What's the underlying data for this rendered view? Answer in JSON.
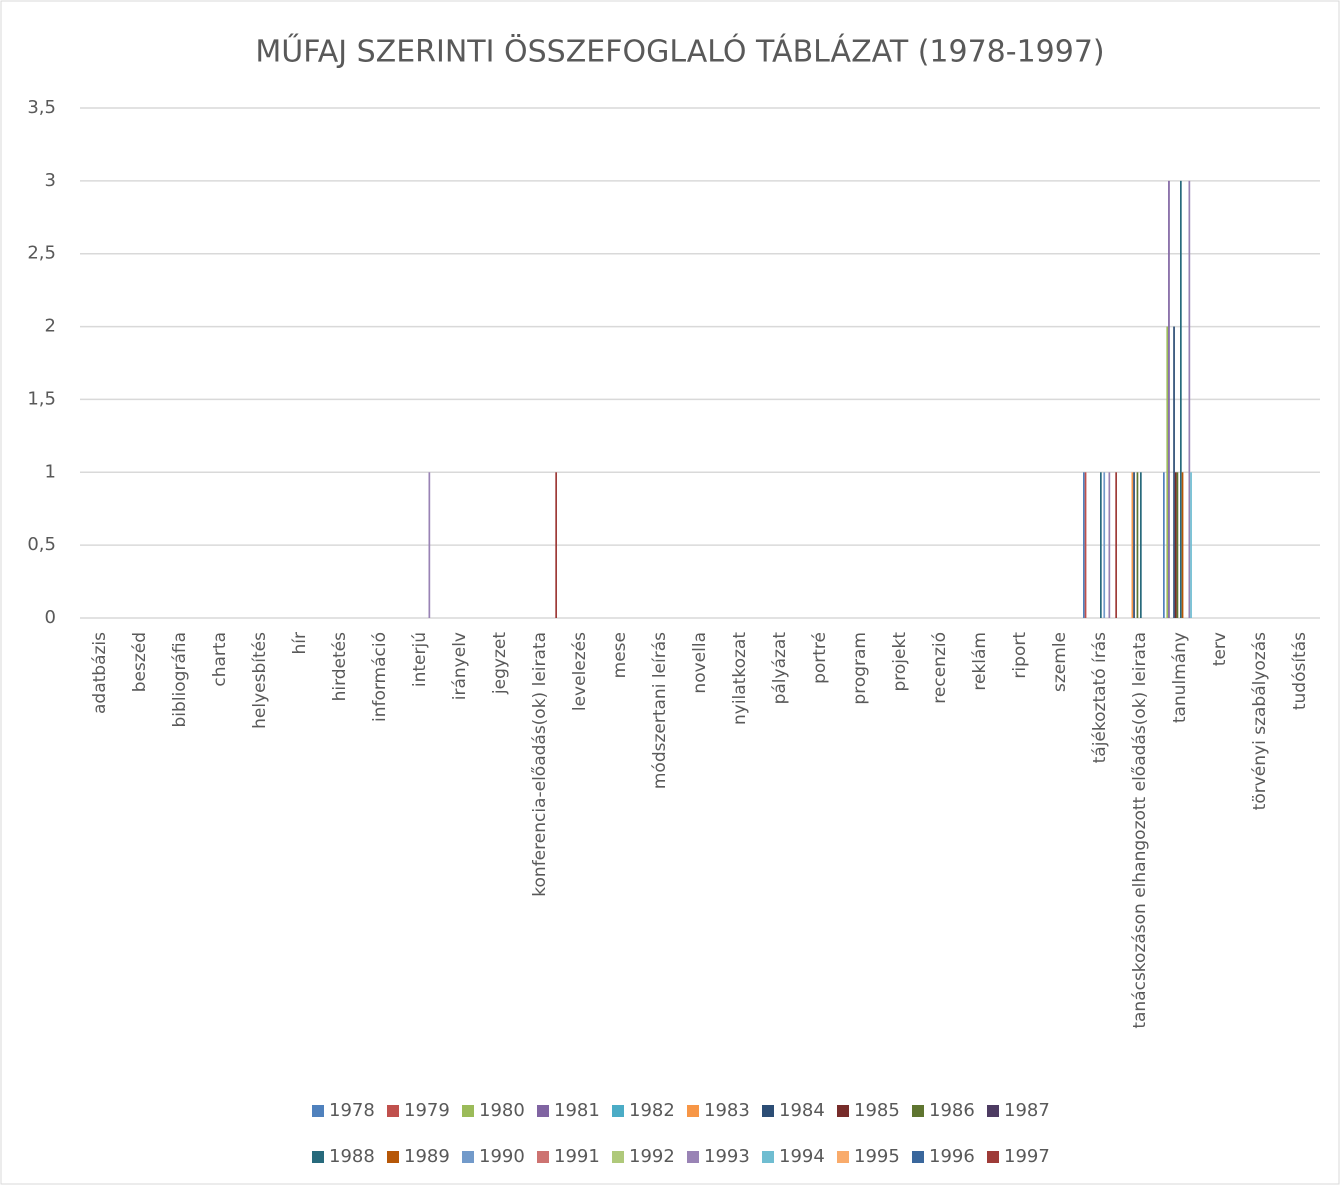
{
  "chart_data": {
    "type": "bar",
    "title": "MŰFAJ SZERINTI ÖSSZEFOGLALÓ TÁBLÁZAT (1978-1997)",
    "categories": [
      "adatbázis",
      "beszéd",
      "bibliográfia",
      "charta",
      "helyesbítés",
      "hír",
      "hirdetés",
      "információ",
      "interjú",
      "irányelv",
      "jegyzet",
      "konferencia-előadás(ok) leirata",
      "levelezés",
      "mese",
      "módszertani leírás",
      "novella",
      "nyilatkozat",
      "pályázat",
      "portré",
      "program",
      "projekt",
      "recenzió",
      "reklám",
      "riport",
      "szemle",
      "tájékoztató írás",
      "tanácskozáson elhangozott előadás(ok) leirata",
      "tanulmány",
      "terv",
      "törvényi szabályozás",
      "tudósítás"
    ],
    "ylim": [
      0,
      3.5
    ],
    "yticks": [
      0,
      {
        "value": 0.5,
        "label": "0,5"
      },
      1,
      {
        "value": 1.5,
        "label": "1,5"
      },
      2,
      {
        "value": 2.5,
        "label": "2,5"
      },
      3,
      {
        "value": 3.5,
        "label": "3,5"
      }
    ],
    "grid": true,
    "legend": "bottom",
    "series": [
      {
        "name": "1978",
        "color": "#4f81bd",
        "values": [
          0,
          0,
          0,
          0,
          0,
          0,
          0,
          0,
          0,
          0,
          0,
          0,
          0,
          0,
          0,
          0,
          0,
          0,
          0,
          0,
          0,
          0,
          0,
          0,
          0,
          1,
          0,
          1,
          0,
          0,
          0
        ]
      },
      {
        "name": "1979",
        "color": "#c0504d",
        "values": [
          0,
          0,
          0,
          0,
          0,
          0,
          0,
          0,
          0,
          0,
          0,
          0,
          0,
          0,
          0,
          0,
          0,
          0,
          0,
          0,
          0,
          0,
          0,
          0,
          0,
          1,
          0,
          0,
          0,
          0,
          0
        ]
      },
      {
        "name": "1980",
        "color": "#9bbb59",
        "values": [
          0,
          0,
          0,
          0,
          0,
          0,
          0,
          0,
          0,
          0,
          0,
          0,
          0,
          0,
          0,
          0,
          0,
          0,
          0,
          0,
          0,
          0,
          0,
          0,
          0,
          0,
          0,
          2,
          0,
          0,
          0
        ]
      },
      {
        "name": "1981",
        "color": "#8064a2",
        "values": [
          0,
          0,
          0,
          0,
          0,
          0,
          0,
          0,
          0,
          0,
          0,
          0,
          0,
          0,
          0,
          0,
          0,
          0,
          0,
          0,
          0,
          0,
          0,
          0,
          0,
          0,
          0,
          3,
          0,
          0,
          0
        ]
      },
      {
        "name": "1982",
        "color": "#4bacc6",
        "values": [
          0,
          0,
          0,
          0,
          0,
          0,
          0,
          0,
          0,
          0,
          0,
          0,
          0,
          0,
          0,
          0,
          0,
          0,
          0,
          0,
          0,
          0,
          0,
          0,
          0,
          0,
          0,
          0,
          0,
          0,
          0
        ]
      },
      {
        "name": "1983",
        "color": "#f79646",
        "values": [
          0,
          0,
          0,
          0,
          0,
          0,
          0,
          0,
          0,
          0,
          0,
          0,
          0,
          0,
          0,
          0,
          0,
          0,
          0,
          0,
          0,
          0,
          0,
          0,
          0,
          0,
          1,
          0,
          0,
          0,
          0
        ]
      },
      {
        "name": "1984",
        "color": "#2c4d75",
        "values": [
          0,
          0,
          0,
          0,
          0,
          0,
          0,
          0,
          0,
          0,
          0,
          0,
          0,
          0,
          0,
          0,
          0,
          0,
          0,
          0,
          0,
          0,
          0,
          0,
          0,
          0,
          1,
          2,
          0,
          0,
          0
        ]
      },
      {
        "name": "1985",
        "color": "#772c2a",
        "values": [
          0,
          0,
          0,
          0,
          0,
          0,
          0,
          0,
          0,
          0,
          0,
          0,
          0,
          0,
          0,
          0,
          0,
          0,
          0,
          0,
          0,
          0,
          0,
          0,
          0,
          0,
          0,
          1,
          0,
          0,
          0
        ]
      },
      {
        "name": "1986",
        "color": "#5f7530",
        "values": [
          0,
          0,
          0,
          0,
          0,
          0,
          0,
          0,
          0,
          0,
          0,
          0,
          0,
          0,
          0,
          0,
          0,
          0,
          0,
          0,
          0,
          0,
          0,
          0,
          0,
          0,
          1,
          1,
          0,
          0,
          0
        ]
      },
      {
        "name": "1987",
        "color": "#4d3b62",
        "values": [
          0,
          0,
          0,
          0,
          0,
          0,
          0,
          0,
          0,
          0,
          0,
          0,
          0,
          0,
          0,
          0,
          0,
          0,
          0,
          0,
          0,
          0,
          0,
          0,
          0,
          0,
          0,
          0,
          0,
          0,
          0
        ]
      },
      {
        "name": "1988",
        "color": "#276a7c",
        "values": [
          0,
          0,
          0,
          0,
          0,
          0,
          0,
          0,
          0,
          0,
          0,
          0,
          0,
          0,
          0,
          0,
          0,
          0,
          0,
          0,
          0,
          0,
          0,
          0,
          0,
          1,
          1,
          3,
          0,
          0,
          0
        ]
      },
      {
        "name": "1989",
        "color": "#b65708",
        "values": [
          0,
          0,
          0,
          0,
          0,
          0,
          0,
          0,
          0,
          0,
          0,
          0,
          0,
          0,
          0,
          0,
          0,
          0,
          0,
          0,
          0,
          0,
          0,
          0,
          0,
          0,
          0,
          1,
          0,
          0,
          0
        ]
      },
      {
        "name": "1990",
        "color": "#729aca",
        "values": [
          0,
          0,
          0,
          0,
          0,
          0,
          0,
          0,
          0,
          0,
          0,
          0,
          0,
          0,
          0,
          0,
          0,
          0,
          0,
          0,
          0,
          0,
          0,
          0,
          0,
          1,
          0,
          0,
          0,
          0,
          0
        ]
      },
      {
        "name": "1991",
        "color": "#cd7371",
        "values": [
          0,
          0,
          0,
          0,
          0,
          0,
          0,
          0,
          0,
          0,
          0,
          0,
          0,
          0,
          0,
          0,
          0,
          0,
          0,
          0,
          0,
          0,
          0,
          0,
          0,
          0,
          0,
          0,
          0,
          0,
          0
        ]
      },
      {
        "name": "1992",
        "color": "#afc97a",
        "values": [
          0,
          0,
          0,
          0,
          0,
          0,
          0,
          0,
          0,
          0,
          0,
          0,
          0,
          0,
          0,
          0,
          0,
          0,
          0,
          0,
          0,
          0,
          0,
          0,
          0,
          0,
          0,
          0,
          0,
          0,
          0
        ]
      },
      {
        "name": "1993",
        "color": "#9983b5",
        "values": [
          0,
          0,
          0,
          0,
          0,
          0,
          0,
          0,
          1,
          0,
          0,
          0,
          0,
          0,
          0,
          0,
          0,
          0,
          0,
          0,
          0,
          0,
          0,
          0,
          0,
          1,
          0,
          3,
          0,
          0,
          0
        ]
      },
      {
        "name": "1994",
        "color": "#6fbdd1",
        "values": [
          0,
          0,
          0,
          0,
          0,
          0,
          0,
          0,
          0,
          0,
          0,
          0,
          0,
          0,
          0,
          0,
          0,
          0,
          0,
          0,
          0,
          0,
          0,
          0,
          0,
          0,
          0,
          1,
          0,
          0,
          0
        ]
      },
      {
        "name": "1995",
        "color": "#f9ab6b",
        "values": [
          0,
          0,
          0,
          0,
          0,
          0,
          0,
          0,
          0,
          0,
          0,
          0,
          0,
          0,
          0,
          0,
          0,
          0,
          0,
          0,
          0,
          0,
          0,
          0,
          0,
          0,
          0,
          0,
          0,
          0,
          0
        ]
      },
      {
        "name": "1996",
        "color": "#3a679c",
        "values": [
          0,
          0,
          0,
          0,
          0,
          0,
          0,
          0,
          0,
          0,
          0,
          0,
          0,
          0,
          0,
          0,
          0,
          0,
          0,
          0,
          0,
          0,
          0,
          0,
          0,
          0,
          0,
          0,
          0,
          0,
          0
        ]
      },
      {
        "name": "1997",
        "color": "#9e3b38",
        "values": [
          0,
          0,
          0,
          0,
          0,
          0,
          0,
          0,
          0,
          0,
          0,
          1,
          0,
          0,
          0,
          0,
          0,
          0,
          0,
          0,
          0,
          0,
          0,
          0,
          0,
          1,
          0,
          0,
          0,
          0,
          0
        ]
      }
    ]
  }
}
